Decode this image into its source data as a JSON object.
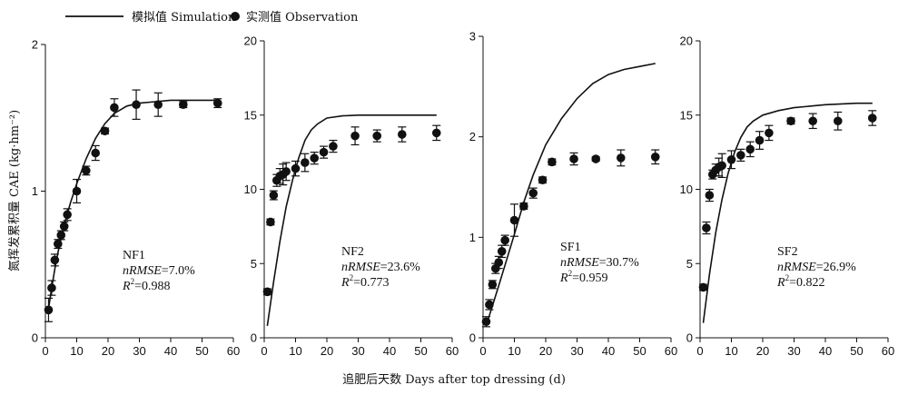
{
  "legend": {
    "simulation_label": "模拟值 Simulation",
    "observation_label": "实测值 Observation"
  },
  "ylabel": "氮挥发累积量 CAE (kg·hm⁻²)",
  "xlabel": "追肥后天数 Days after top dressing (d)",
  "colors": {
    "ink": "#111111"
  },
  "chart_data": [
    {
      "type": "line+scatter",
      "panel": "NF1",
      "xlim": [
        0,
        60
      ],
      "ylim": [
        0,
        2
      ],
      "xticks": [
        0,
        10,
        20,
        30,
        40,
        50,
        60
      ],
      "yticks": [
        0,
        1,
        2
      ],
      "annotation": {
        "name": "NF1",
        "nrmse": "=7.0%",
        "r2": "=0.988"
      },
      "simulation": {
        "x": [
          1,
          2,
          3,
          4,
          5,
          6,
          8,
          10,
          13,
          16,
          19,
          22,
          26,
          30,
          35,
          40,
          45,
          50,
          55
        ],
        "y": [
          0.2,
          0.34,
          0.47,
          0.58,
          0.68,
          0.77,
          0.92,
          1.05,
          1.22,
          1.36,
          1.46,
          1.53,
          1.58,
          1.6,
          1.61,
          1.62,
          1.62,
          1.62,
          1.62
        ]
      },
      "observation": {
        "x": [
          1,
          2,
          3,
          4,
          5,
          6,
          7,
          10,
          13,
          16,
          19,
          22,
          29,
          36,
          44,
          55
        ],
        "y": [
          0.19,
          0.34,
          0.53,
          0.64,
          0.7,
          0.76,
          0.84,
          1.0,
          1.14,
          1.26,
          1.41,
          1.57,
          1.59,
          1.59,
          1.59,
          1.6
        ],
        "err": [
          0.08,
          0.05,
          0.04,
          0.03,
          0.03,
          0.03,
          0.04,
          0.08,
          0.03,
          0.05,
          0.02,
          0.06,
          0.1,
          0.08,
          0.02,
          0.03
        ]
      }
    },
    {
      "type": "line+scatter",
      "panel": "NF2",
      "xlim": [
        0,
        60
      ],
      "ylim": [
        0,
        20
      ],
      "xticks": [
        0,
        10,
        20,
        30,
        40,
        50,
        60
      ],
      "yticks": [
        0,
        5,
        10,
        15,
        20
      ],
      "annotation": {
        "name": "NF2",
        "nrmse": "=23.6%",
        "r2": "=0.773"
      },
      "simulation": {
        "x": [
          1,
          3,
          5,
          7,
          9,
          11,
          13,
          15,
          17,
          20,
          25,
          30,
          40,
          50,
          55
        ],
        "y": [
          0.8,
          3.8,
          6.5,
          8.8,
          10.6,
          12.1,
          13.3,
          14.0,
          14.4,
          14.8,
          14.95,
          15.0,
          15.0,
          15.0,
          15.0
        ]
      },
      "observation": {
        "x": [
          1,
          2,
          3,
          4,
          5,
          6,
          7,
          10,
          13,
          16,
          19,
          22,
          29,
          36,
          44,
          55
        ],
        "y": [
          3.1,
          7.8,
          9.6,
          10.6,
          10.9,
          11.0,
          11.2,
          11.4,
          11.8,
          12.1,
          12.5,
          12.9,
          13.6,
          13.6,
          13.7,
          13.8
        ],
        "err": [
          0.2,
          0.2,
          0.3,
          0.4,
          0.5,
          0.7,
          0.6,
          0.5,
          0.6,
          0.4,
          0.4,
          0.4,
          0.6,
          0.4,
          0.5,
          0.5
        ]
      }
    },
    {
      "type": "line+scatter",
      "panel": "SF1",
      "xlim": [
        0,
        60
      ],
      "ylim": [
        0,
        3
      ],
      "xticks": [
        0,
        10,
        20,
        30,
        40,
        50,
        60
      ],
      "yticks": [
        0,
        1,
        2,
        3
      ],
      "annotation": {
        "name": "SF1",
        "nrmse": "=30.7%",
        "r2": "=0.959"
      },
      "simulation": {
        "x": [
          1,
          2,
          3,
          5,
          7,
          10,
          13,
          16,
          20,
          25,
          30,
          35,
          40,
          45,
          50,
          55
        ],
        "y": [
          0.12,
          0.22,
          0.32,
          0.52,
          0.72,
          1.03,
          1.35,
          1.62,
          1.92,
          2.18,
          2.38,
          2.53,
          2.62,
          2.67,
          2.7,
          2.73
        ]
      },
      "observation": {
        "x": [
          1,
          2,
          3,
          4,
          5,
          6,
          7,
          10,
          13,
          16,
          19,
          22,
          29,
          36,
          44,
          55
        ],
        "y": [
          0.16,
          0.33,
          0.53,
          0.69,
          0.75,
          0.86,
          0.97,
          1.17,
          1.31,
          1.44,
          1.57,
          1.75,
          1.78,
          1.78,
          1.79,
          1.8
        ],
        "err": [
          0.05,
          0.05,
          0.04,
          0.05,
          0.06,
          0.06,
          0.05,
          0.16,
          0.03,
          0.05,
          0.03,
          0.03,
          0.06,
          0.02,
          0.08,
          0.07
        ]
      }
    },
    {
      "type": "line+scatter",
      "panel": "SF2",
      "xlim": [
        0,
        60
      ],
      "ylim": [
        0,
        20
      ],
      "xticks": [
        0,
        10,
        20,
        30,
        40,
        50,
        60
      ],
      "yticks": [
        0,
        5,
        10,
        15,
        20
      ],
      "annotation": {
        "name": "SF2",
        "nrmse": "=26.9%",
        "r2": "=0.822"
      },
      "simulation": {
        "x": [
          1,
          3,
          5,
          7,
          9,
          11,
          13,
          15,
          17,
          20,
          25,
          30,
          40,
          50,
          55
        ],
        "y": [
          1.0,
          4.3,
          7.1,
          9.3,
          11.1,
          12.5,
          13.5,
          14.2,
          14.6,
          15.0,
          15.3,
          15.5,
          15.7,
          15.8,
          15.8
        ]
      },
      "observation": {
        "x": [
          1,
          2,
          3,
          4,
          5,
          6,
          7,
          10,
          13,
          16,
          19,
          22,
          29,
          36,
          44,
          55
        ],
        "y": [
          3.4,
          7.4,
          9.6,
          11.0,
          11.3,
          11.5,
          11.6,
          12.0,
          12.3,
          12.7,
          13.3,
          13.8,
          14.6,
          14.6,
          14.6,
          14.8
        ],
        "err": [
          0.2,
          0.4,
          0.4,
          0.3,
          0.4,
          0.6,
          0.8,
          0.6,
          0.4,
          0.5,
          0.6,
          0.5,
          0.2,
          0.5,
          0.6,
          0.5
        ]
      }
    }
  ]
}
